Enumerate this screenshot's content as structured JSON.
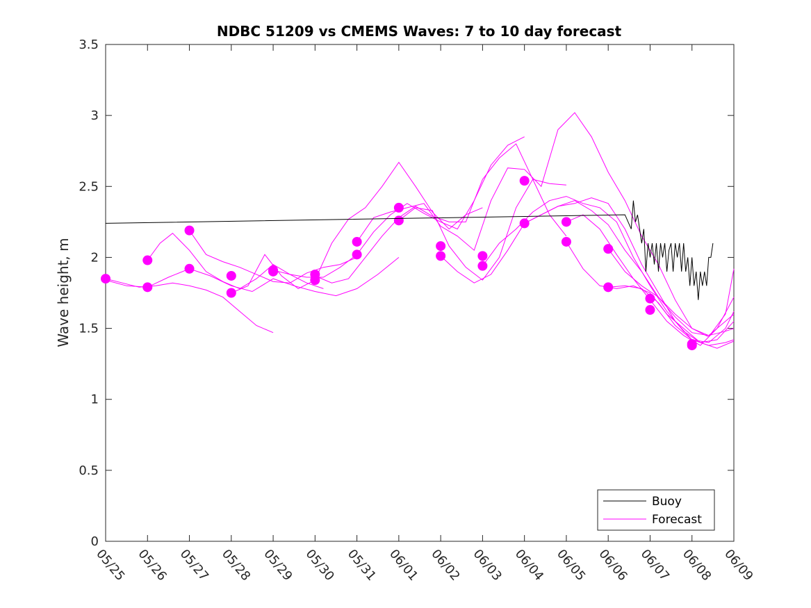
{
  "chart_data": {
    "type": "line",
    "title": "NDBC 51209 vs CMEMS Waves: 7 to 10 day forecast",
    "xlabel": "",
    "ylabel": "Wave height, m",
    "x_ticks": [
      "05/25",
      "05/26",
      "05/27",
      "05/28",
      "05/29",
      "05/30",
      "05/31",
      "06/01",
      "06/02",
      "06/03",
      "06/04",
      "06/05",
      "06/06",
      "06/07",
      "06/08",
      "06/09"
    ],
    "xlim": [
      0,
      15
    ],
    "ylim": [
      0,
      3.5
    ],
    "y_ticks": [
      0,
      0.5,
      1,
      1.5,
      2,
      2.5,
      3,
      3.5
    ],
    "y_tick_labels": [
      "0",
      "0.5",
      "1",
      "1.5",
      "2",
      "2.5",
      "3",
      "3.5"
    ],
    "x_unit": "days since 05/25",
    "legend": {
      "placement": "bottom-right",
      "entries": [
        {
          "label": "Buoy",
          "color": "#000000"
        },
        {
          "label": "Forecast",
          "color": "#ff00ff"
        }
      ]
    },
    "colors": {
      "buoy": "#000000",
      "forecast": "#ff00ff"
    },
    "buoy": {
      "x": [
        0,
        12.4,
        12.55,
        12.6,
        12.65,
        12.7,
        12.75,
        12.8,
        12.85,
        12.9,
        12.95,
        13.0,
        13.05,
        13.1,
        13.15,
        13.2,
        13.25,
        13.3,
        13.35,
        13.4,
        13.45,
        13.5,
        13.55,
        13.6,
        13.65,
        13.7,
        13.75,
        13.8,
        13.85,
        13.9,
        13.95,
        14.0,
        14.05,
        14.1,
        14.15,
        14.2,
        14.25,
        14.3,
        14.35,
        14.4,
        14.45,
        14.5
      ],
      "y": [
        2.24,
        2.3,
        2.2,
        2.4,
        2.25,
        2.3,
        2.2,
        2.1,
        2.2,
        1.9,
        2.1,
        2.0,
        2.1,
        1.95,
        2.1,
        1.9,
        2.1,
        2.0,
        2.1,
        1.9,
        2.05,
        2.1,
        1.9,
        2.1,
        2.0,
        2.1,
        1.9,
        2.1,
        1.9,
        2.0,
        1.8,
        2.0,
        1.8,
        1.9,
        1.7,
        1.9,
        1.8,
        1.9,
        1.8,
        2.0,
        2.0,
        2.1
      ]
    },
    "series": [
      {
        "x": [
          0,
          0.4,
          0.8,
          1.2,
          1.6,
          2.0,
          2.4,
          2.8,
          3.2,
          3.6,
          4.0
        ],
        "y": [
          1.85,
          1.82,
          1.79,
          1.8,
          1.82,
          1.8,
          1.77,
          1.72,
          1.62,
          1.52,
          1.47
        ]
      },
      {
        "x": [
          1.0,
          1.3,
          1.6,
          2.0,
          2.4,
          2.8,
          3.2,
          3.6,
          4.0,
          4.4,
          4.8,
          5.2
        ],
        "y": [
          1.98,
          2.1,
          2.17,
          2.05,
          1.9,
          1.83,
          1.78,
          1.85,
          1.95,
          1.88,
          1.82,
          1.78
        ]
      },
      {
        "x": [
          2.0,
          2.4,
          2.8,
          3.2,
          3.6,
          4.0,
          4.4,
          4.8,
          5.2,
          5.6,
          6.0
        ],
        "y": [
          2.19,
          2.02,
          1.97,
          1.93,
          1.88,
          1.83,
          1.82,
          1.89,
          1.93,
          1.95,
          2.0
        ]
      },
      {
        "x": [
          0,
          0.5,
          1.0,
          1.5,
          2.0,
          2.5,
          3.0,
          3.5,
          4.0,
          4.5,
          5.0,
          5.5,
          6.0,
          6.5,
          7.0
        ],
        "y": [
          1.84,
          1.8,
          1.79,
          1.86,
          1.92,
          1.87,
          1.8,
          1.76,
          1.85,
          1.8,
          1.76,
          1.73,
          1.78,
          1.88,
          2.0
        ]
      },
      {
        "x": [
          3.0,
          3.4,
          3.8,
          4.2,
          4.6,
          5.0,
          5.4,
          5.8,
          6.2,
          6.6,
          7.0,
          7.4,
          7.8,
          8.2,
          8.6,
          9.0
        ],
        "y": [
          1.75,
          1.8,
          2.02,
          1.87,
          1.78,
          1.84,
          2.1,
          2.27,
          2.35,
          2.5,
          2.67,
          2.5,
          2.32,
          2.2,
          2.3,
          2.35
        ]
      },
      {
        "x": [
          4.0,
          4.4,
          4.8,
          5.2,
          5.6,
          6.0,
          6.4,
          6.8,
          7.2,
          7.6,
          8.0,
          8.4,
          8.8,
          9.2,
          9.6,
          10.0
        ],
        "y": [
          1.91,
          1.88,
          1.86,
          1.86,
          1.93,
          2.02,
          2.18,
          2.3,
          2.38,
          2.31,
          2.25,
          2.2,
          2.4,
          2.65,
          2.79,
          2.85
        ]
      },
      {
        "x": [
          5.0,
          5.4,
          5.8,
          6.2,
          6.6,
          7.0,
          7.4,
          7.8,
          8.2,
          8.6,
          9.0,
          9.4,
          9.8,
          10.2,
          10.6,
          11.0
        ],
        "y": [
          1.87,
          1.82,
          1.85,
          2.0,
          2.15,
          2.28,
          2.36,
          2.29,
          2.25,
          2.25,
          2.55,
          2.7,
          2.8,
          2.55,
          2.3,
          2.15
        ]
      },
      {
        "x": [
          6.0,
          6.4,
          6.8,
          7.2,
          7.6,
          8.0,
          8.4,
          8.8,
          9.2,
          9.6,
          10.0,
          10.4,
          10.8,
          11.2,
          11.6,
          12.0,
          12.4,
          12.8,
          13.2,
          13.6,
          14.0,
          14.4,
          14.8,
          15.0
        ],
        "y": [
          2.11,
          2.28,
          2.32,
          2.35,
          2.38,
          2.22,
          2.15,
          2.05,
          2.4,
          2.63,
          2.62,
          2.5,
          2.9,
          3.02,
          2.85,
          2.6,
          2.4,
          2.15,
          1.95,
          1.7,
          1.5,
          1.45,
          1.55,
          1.6
        ]
      },
      {
        "x": [
          7.0,
          7.4,
          7.8,
          8.2,
          8.6,
          9.0,
          9.4,
          9.8,
          10.2,
          10.6,
          11.0
        ],
        "y": [
          2.26,
          2.35,
          2.33,
          2.08,
          1.93,
          1.84,
          2.0,
          2.35,
          2.55,
          2.52,
          2.51
        ]
      },
      {
        "x": [
          8.0,
          8.4,
          8.8,
          9.2,
          9.6,
          10.0,
          10.4,
          10.8,
          11.2,
          11.6,
          12.0,
          12.4,
          12.8,
          13.2,
          13.6,
          14.0,
          14.4,
          14.8,
          15.0
        ],
        "y": [
          2.01,
          1.9,
          1.82,
          1.88,
          2.05,
          2.24,
          2.3,
          2.36,
          2.4,
          2.33,
          2.23,
          2.05,
          1.9,
          1.72,
          1.58,
          1.47,
          1.45,
          1.48,
          1.5
        ]
      },
      {
        "x": [
          9.0,
          9.4,
          9.8,
          10.2,
          10.6,
          11.0,
          11.4,
          11.8,
          12.2,
          12.6,
          13.0,
          13.4,
          13.8,
          14.2,
          14.6,
          15.0
        ],
        "y": [
          1.94,
          2.1,
          2.2,
          2.32,
          2.4,
          2.43,
          2.38,
          2.35,
          2.25,
          2.0,
          1.8,
          1.62,
          1.48,
          1.4,
          1.42,
          1.55
        ]
      },
      {
        "x": [
          10.0,
          10.4,
          10.8,
          11.2,
          11.6,
          12.0,
          12.4,
          12.8,
          13.2,
          13.6,
          14.0,
          14.4,
          14.8,
          15.0
        ],
        "y": [
          2.24,
          2.3,
          2.36,
          2.38,
          2.42,
          2.38,
          2.2,
          1.95,
          1.75,
          1.55,
          1.42,
          1.38,
          1.4,
          1.42
        ]
      },
      {
        "x": [
          11.0,
          11.4,
          11.8,
          12.2,
          12.6,
          13.0,
          13.4,
          13.8,
          14.2,
          14.6,
          15.0
        ],
        "y": [
          2.11,
          1.92,
          1.8,
          1.78,
          1.8,
          1.75,
          1.6,
          1.5,
          1.4,
          1.36,
          1.41
        ]
      },
      {
        "x": [
          11.0,
          11.4,
          11.8,
          12.2,
          12.6,
          13.0,
          13.4,
          13.8,
          14.2,
          14.6,
          15.0
        ],
        "y": [
          2.25,
          2.3,
          2.2,
          2.02,
          1.85,
          1.7,
          1.55,
          1.45,
          1.38,
          1.5,
          1.72
        ]
      },
      {
        "x": [
          12.0,
          12.4,
          12.8,
          13.2,
          13.6,
          14.0,
          14.4,
          14.8,
          15.0
        ],
        "y": [
          2.06,
          1.9,
          1.8,
          1.72,
          1.6,
          1.5,
          1.44,
          1.6,
          1.92
        ]
      },
      {
        "x": [
          12.0,
          12.4,
          12.8,
          13.2,
          13.6,
          14.0,
          14.4,
          14.8,
          15.0
        ],
        "y": [
          1.79,
          1.8,
          1.78,
          1.68,
          1.52,
          1.42,
          1.4,
          1.5,
          1.62
        ]
      }
    ],
    "markers": {
      "x": [
        0,
        1.0,
        1.0,
        2.0,
        2.0,
        3.0,
        3.0,
        4.0,
        4.0,
        5.0,
        5.0,
        6.0,
        6.0,
        7.0,
        7.0,
        8.0,
        8.0,
        9.0,
        9.0,
        10.0,
        10.0,
        11.0,
        11.0,
        12.0,
        12.0,
        13.0,
        13.0,
        14.0,
        14.0
      ],
      "y": [
        1.85,
        1.98,
        1.79,
        2.19,
        1.92,
        1.87,
        1.75,
        1.91,
        1.9,
        1.88,
        1.84,
        2.11,
        2.02,
        2.35,
        2.26,
        2.08,
        2.01,
        2.01,
        1.94,
        2.54,
        2.24,
        2.25,
        2.11,
        2.06,
        1.79,
        1.71,
        1.63,
        1.39,
        1.38
      ]
    }
  }
}
